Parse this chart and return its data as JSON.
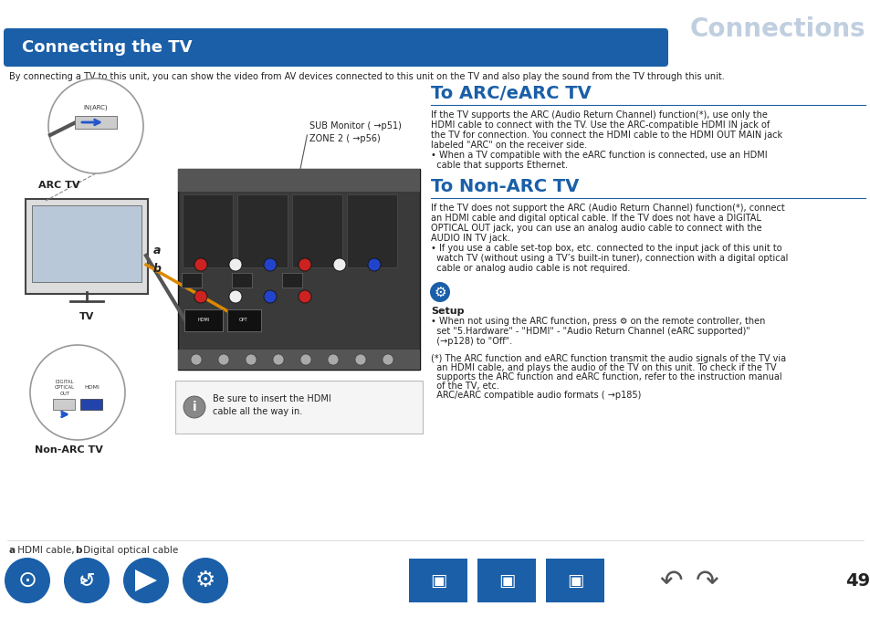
{
  "page_bg": "#ffffff",
  "header_text": "Connections",
  "header_text_color": "#c0cfe0",
  "section_bar_color": "#1a5fa8",
  "section_title": "Connecting the TV",
  "section_title_color": "#ffffff",
  "intro_text": "By connecting a TV to this unit, you can show the video from AV devices connected to this unit on the TV and also play the sound from the TV through this unit.",
  "arc_title": "To ARC/eARC TV",
  "arc_title_color": "#1a5fa8",
  "nonarc_title": "To Non-ARC TV",
  "nonarc_title_color": "#1a5fa8",
  "setup_title": "Setup",
  "arc_body_lines": [
    "If the TV supports the ARC (Audio Return Channel) function(*), use only the",
    "HDMI cable to connect with the TV. Use the ARC-compatible HDMI IN jack of",
    "the TV for connection. You connect the HDMI cable to the HDMI OUT MAIN jack",
    "labeled \"ARC\" on the receiver side.",
    "• When a TV compatible with the eARC function is connected, use an HDMI",
    "  cable that supports Ethernet."
  ],
  "nonarc_body_lines": [
    "If the TV does not support the ARC (Audio Return Channel) function(*), connect",
    "an HDMI cable and digital optical cable. If the TV does not have a DIGITAL",
    "OPTICAL OUT jack, you can use an analog audio cable to connect with the",
    "AUDIO IN TV jack.",
    "• If you use a cable set-top box, etc. connected to the input jack of this unit to",
    "  watch TV (without using a TV’s built-in tuner), connection with a digital optical",
    "  cable or analog audio cable is not required."
  ],
  "setup_body_lines": [
    "• When not using the ARC function, press ⚙ on the remote controller, then",
    "  set \"5.Hardware\" - \"HDMI\" - \"Audio Return Channel (eARC supported)\"",
    "  (→p128) to \"Off\"."
  ],
  "footnote_lines": [
    "(*) The ARC function and eARC function transmit the audio signals of the TV via",
    "  an HDMI cable, and plays the audio of the TV on this unit. To check if the TV",
    "  supports the ARC function and eARC function, refer to the instruction manual",
    "  of the TV, etc.",
    "  ARC/eARC compatible audio formats ( →p185)"
  ],
  "caption_text_a": "a",
  "caption_text_a2": " HDMI cable, ",
  "caption_text_b": "b",
  "caption_text_b2": " Digital optical cable",
  "note_text_lines": [
    "Be sure to insert the HDMI",
    "cable all the way in."
  ],
  "sub_monitor_line1": "SUB Monitor ( →p51)",
  "sub_monitor_line2": "ZONE 2 ( →p56)",
  "arc_tv_label": "ARC TV",
  "tv_label": "TV",
  "nonarc_label": "Non-ARC TV",
  "label_a": "a",
  "label_b": "b",
  "page_number": "49",
  "divider_color": "#1a5fa8",
  "icon_color": "#1a5fa8",
  "link_color": "#1a5fa8"
}
